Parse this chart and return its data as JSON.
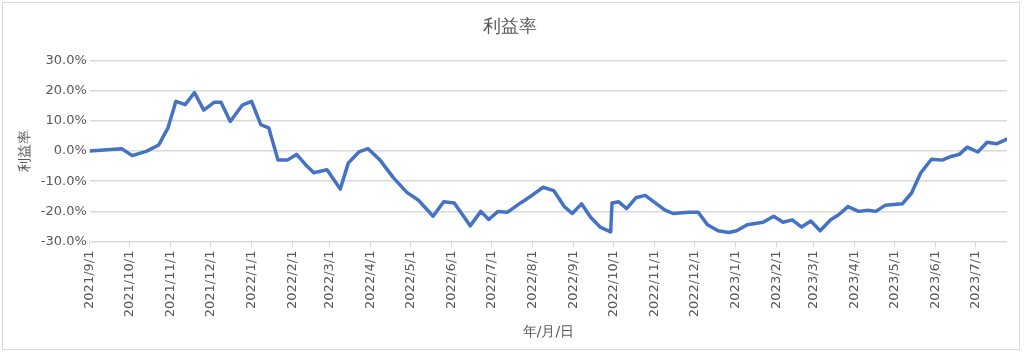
{
  "chart_data": {
    "type": "line",
    "title": "利益率",
    "xlabel": "年/月/日",
    "ylabel": "利益率",
    "x": [
      "2021-09-01",
      "2021-09-25",
      "2021-10-03",
      "2021-10-14",
      "2021-10-23",
      "2021-10-30",
      "2021-11-05",
      "2021-11-12",
      "2021-11-19",
      "2021-11-26",
      "2021-12-04",
      "2021-12-09",
      "2021-12-16",
      "2021-12-25",
      "2022-01-01",
      "2022-01-08",
      "2022-01-14",
      "2022-01-21",
      "2022-01-28",
      "2022-02-04",
      "2022-02-11",
      "2022-02-17",
      "2022-02-27",
      "2022-03-09",
      "2022-03-15",
      "2022-03-23",
      "2022-03-30",
      "2022-04-08",
      "2022-04-18",
      "2022-04-28",
      "2022-05-07",
      "2022-05-18",
      "2022-05-26",
      "2022-06-03",
      "2022-06-15",
      "2022-06-23",
      "2022-06-29",
      "2022-07-06",
      "2022-07-13",
      "2022-07-23",
      "2022-07-29",
      "2022-08-09",
      "2022-08-17",
      "2022-08-25",
      "2022-08-31",
      "2022-09-07",
      "2022-09-14",
      "2022-09-21",
      "2022-09-29",
      "2022-09-30",
      "2022-10-05",
      "2022-10-11",
      "2022-10-18",
      "2022-10-25",
      "2022-11-09",
      "2022-11-15",
      "2022-11-27",
      "2022-12-04",
      "2022-12-11",
      "2022-12-19",
      "2022-12-27",
      "2023-01-02",
      "2023-01-10",
      "2023-01-22",
      "2023-01-30",
      "2023-02-06",
      "2023-02-13",
      "2023-02-20",
      "2023-02-27",
      "2023-03-06",
      "2023-03-14",
      "2023-03-20",
      "2023-03-27",
      "2023-04-04",
      "2023-04-11",
      "2023-04-17",
      "2023-04-24",
      "2023-05-07",
      "2023-05-14",
      "2023-05-21",
      "2023-05-29",
      "2023-06-06",
      "2023-06-12",
      "2023-06-19",
      "2023-06-25",
      "2023-07-03",
      "2023-07-10",
      "2023-07-17",
      "2023-07-25"
    ],
    "series": [
      {
        "color": "#4472c4",
        "values": [
          0.0,
          0.8,
          -1.5,
          0.0,
          2.0,
          7.7,
          16.5,
          15.4,
          19.4,
          13.6,
          16.2,
          16.2,
          9.8,
          15.2,
          16.5,
          8.8,
          7.7,
          -3.0,
          -3.0,
          -1.1,
          -4.6,
          -7.2,
          -6.2,
          -12.6,
          -4.0,
          -0.3,
          0.8,
          -3.0,
          -8.8,
          -13.6,
          -16.3,
          -21.6,
          -16.8,
          -17.2,
          -24.8,
          -20.0,
          -22.7,
          -20.0,
          -20.3,
          -17.2,
          -15.5,
          -12.0,
          -13.1,
          -18.4,
          -20.7,
          -17.5,
          -22.0,
          -25.2,
          -26.8,
          -17.2,
          -16.8,
          -19.1,
          -15.5,
          -14.7,
          -19.6,
          -20.7,
          -20.3,
          -20.3,
          -24.4,
          -26.4,
          -27.0,
          -26.4,
          -24.4,
          -23.6,
          -21.6,
          -23.6,
          -22.8,
          -25.2,
          -23.2,
          -26.4,
          -22.8,
          -21.1,
          -18.4,
          -20.0,
          -19.6,
          -20.0,
          -18.0,
          -17.5,
          -13.9,
          -7.2,
          -2.7,
          -3.0,
          -1.9,
          -1.1,
          1.3,
          -0.3,
          2.9,
          2.4,
          4.0
        ]
      }
    ],
    "xlim": [
      "2021-09-01",
      "2023-07-25"
    ],
    "xticks": [
      {
        "value": "2021-09-01",
        "label": "2021/9/1"
      },
      {
        "value": "2021-10-01",
        "label": "2021/10/1"
      },
      {
        "value": "2021-11-01",
        "label": "2021/11/1"
      },
      {
        "value": "2021-12-01",
        "label": "2021/12/1"
      },
      {
        "value": "2022-01-01",
        "label": "2022/1/1"
      },
      {
        "value": "2022-02-01",
        "label": "2022/2/1"
      },
      {
        "value": "2022-03-01",
        "label": "2022/3/1"
      },
      {
        "value": "2022-04-01",
        "label": "2022/4/1"
      },
      {
        "value": "2022-05-01",
        "label": "2022/5/1"
      },
      {
        "value": "2022-06-01",
        "label": "2022/6/1"
      },
      {
        "value": "2022-07-01",
        "label": "2022/7/1"
      },
      {
        "value": "2022-08-01",
        "label": "2022/8/1"
      },
      {
        "value": "2022-09-01",
        "label": "2022/9/1"
      },
      {
        "value": "2022-10-01",
        "label": "2022/10/1"
      },
      {
        "value": "2022-11-01",
        "label": "2022/11/1"
      },
      {
        "value": "2022-12-01",
        "label": "2022/12/1"
      },
      {
        "value": "2023-01-01",
        "label": "2023/1/1"
      },
      {
        "value": "2023-02-01",
        "label": "2023/2/1"
      },
      {
        "value": "2023-03-01",
        "label": "2023/3/1"
      },
      {
        "value": "2023-04-01",
        "label": "2023/4/1"
      },
      {
        "value": "2023-05-01",
        "label": "2023/5/1"
      },
      {
        "value": "2023-06-01",
        "label": "2023/6/1"
      },
      {
        "value": "2023-07-01",
        "label": "2023/7/1"
      }
    ],
    "ylim": [
      -30,
      30
    ],
    "yticks": [
      {
        "value": -30,
        "label": "-30.0%"
      },
      {
        "value": -20,
        "label": "-20.0%"
      },
      {
        "value": -10,
        "label": "-10.0%"
      },
      {
        "value": 0,
        "label": "0.0%"
      },
      {
        "value": 10,
        "label": "10.0%"
      },
      {
        "value": 20,
        "label": "20.0%"
      },
      {
        "value": 30,
        "label": "30.0%"
      }
    ],
    "grid": "y",
    "legend": false,
    "marker": "none",
    "line_style": "solid"
  }
}
